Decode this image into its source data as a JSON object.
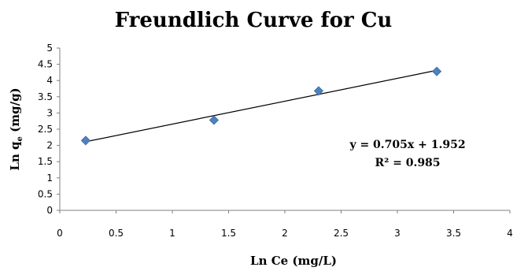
{
  "chart_data": {
    "type": "scatter",
    "title": "Freundlich Curve for Cu",
    "xlabel": "Ln Ce (mg/L)",
    "ylabel": "Ln q",
    "ylabel_subscript": "e",
    "ylabel_suffix": " (mg/g)",
    "xlim": [
      0,
      4
    ],
    "ylim": [
      0,
      5
    ],
    "xticks": [
      0,
      0.5,
      1,
      1.5,
      2,
      2.5,
      3,
      3.5,
      4
    ],
    "yticks": [
      0,
      0.5,
      1,
      1.5,
      2,
      2.5,
      3,
      3.5,
      4,
      4.5,
      5
    ],
    "xtick_labels": [
      "0",
      "0.5",
      "1",
      "1.5",
      "2",
      "2.5",
      "3",
      "3.5",
      "4"
    ],
    "ytick_labels": [
      "0",
      "0.5",
      "1",
      "1.5",
      "2",
      "2.5",
      "3",
      "3.5",
      "4",
      "4.5",
      "5"
    ],
    "grid": false,
    "legend": "none",
    "series": [
      {
        "x": [
          0.23,
          1.37,
          2.3,
          3.35
        ],
        "y": [
          2.15,
          2.78,
          3.68,
          4.28
        ],
        "marker": "diamond",
        "color": "#4f81bd"
      }
    ],
    "trendline": {
      "type": "linear",
      "slope": 0.705,
      "intercept": 1.952,
      "x_range": [
        0.23,
        3.35
      ],
      "color": "#000000"
    },
    "annotations": {
      "equation": "y = 0.705x + 1.952",
      "r_squared": "R² = 0.985"
    }
  }
}
